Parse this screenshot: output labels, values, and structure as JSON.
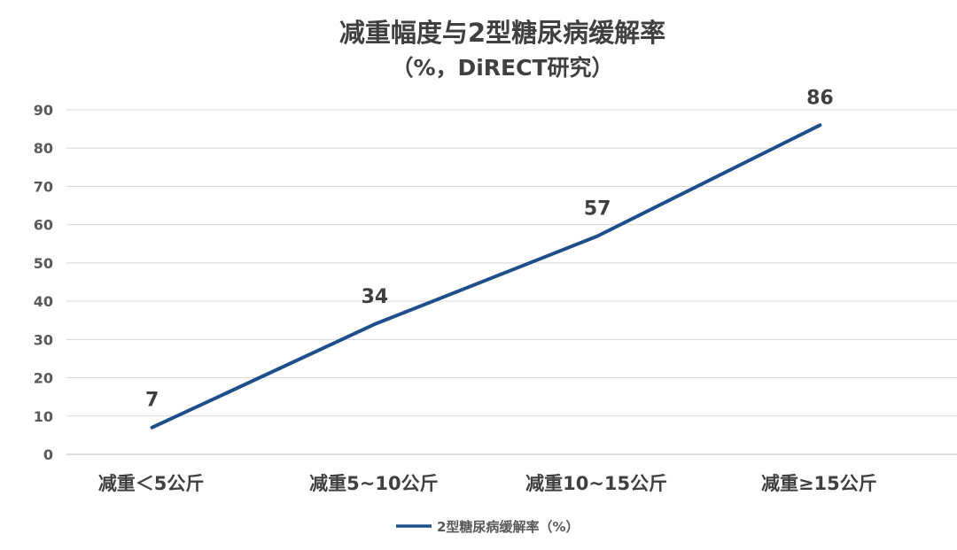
{
  "chart_data": {
    "type": "line",
    "title": "减重幅度与2型糖尿病缓解率",
    "subtitle": "（%，DiRECT研究）",
    "categories": [
      "减重＜5公斤",
      "减重5~10公斤",
      "减重10~15公斤",
      "减重≥15公斤"
    ],
    "series": [
      {
        "name": "2型糖尿病缓解率（%）",
        "values": [
          7,
          34,
          57,
          86
        ],
        "color": "#1f4e8c"
      }
    ],
    "data_labels": [
      "7",
      "34",
      "57",
      "86"
    ],
    "ylim": [
      0,
      90
    ],
    "yticks": [
      0,
      10,
      20,
      30,
      40,
      50,
      60,
      70,
      80,
      90
    ],
    "grid": true,
    "legend_position": "bottom",
    "gridline_color": "#d9d9d9",
    "axis_color": "#bfbfbf"
  }
}
